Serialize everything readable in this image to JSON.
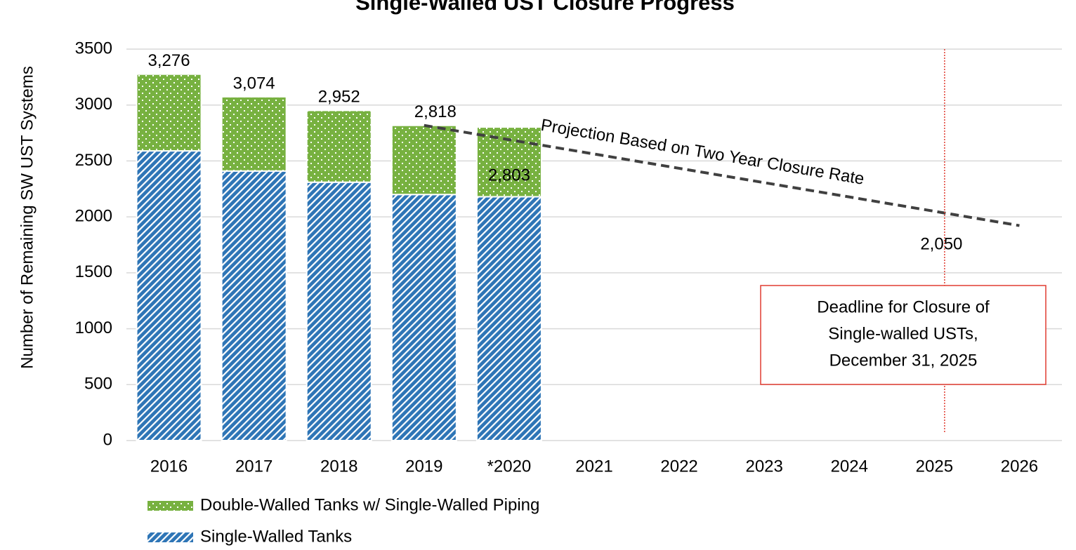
{
  "chart_data": {
    "type": "bar",
    "stacked": true,
    "title": "Single-Walled UST Closure Progress",
    "y_label": "Number of Remaining SW UST Systems",
    "categories": [
      "2016",
      "2017",
      "2018",
      "2019",
      "*2020",
      "2021",
      "2022",
      "2023",
      "2024",
      "2025",
      "2026"
    ],
    "series": [
      {
        "name": "Double-Walled Tanks w/ Single-Walled Piping",
        "color": "#77b140",
        "pattern": "dots",
        "values": [
          686,
          664,
          642,
          618,
          623,
          null,
          null,
          null,
          null,
          null,
          null
        ]
      },
      {
        "name": "Single-Walled Tanks",
        "color": "#2e75b6",
        "pattern": "diagonal",
        "values": [
          2590,
          2410,
          2310,
          2200,
          2180,
          null,
          null,
          null,
          null,
          null,
          null
        ]
      }
    ],
    "totals": [
      3276,
      3074,
      2952,
      2818,
      2803,
      null,
      null,
      null,
      null,
      null,
      null
    ],
    "total_labels": [
      "3,276",
      "3,074",
      "2,952",
      "2,818",
      "2,803",
      null,
      null,
      null,
      null,
      null,
      null
    ],
    "projection": {
      "annotation": "Projection Based on Two Year Closure Rate",
      "color": "#404040",
      "values": [
        null,
        null,
        null,
        2818,
        2690,
        2562,
        2434,
        2306,
        2178,
        2050,
        1922
      ],
      "value_labels": [
        null,
        null,
        null,
        null,
        null,
        null,
        null,
        null,
        null,
        "2,050",
        null
      ]
    },
    "deadline": {
      "category": "2025",
      "color": "#e03c31",
      "label": [
        "Deadline for Closure of",
        "Single-walled USTs,",
        "December 31, 2025"
      ]
    },
    "ylim": [
      0,
      3500
    ],
    "yticks": [
      0,
      500,
      1000,
      1500,
      2000,
      2500,
      3000,
      3500
    ],
    "grid": true,
    "legend": "bottom-left"
  }
}
